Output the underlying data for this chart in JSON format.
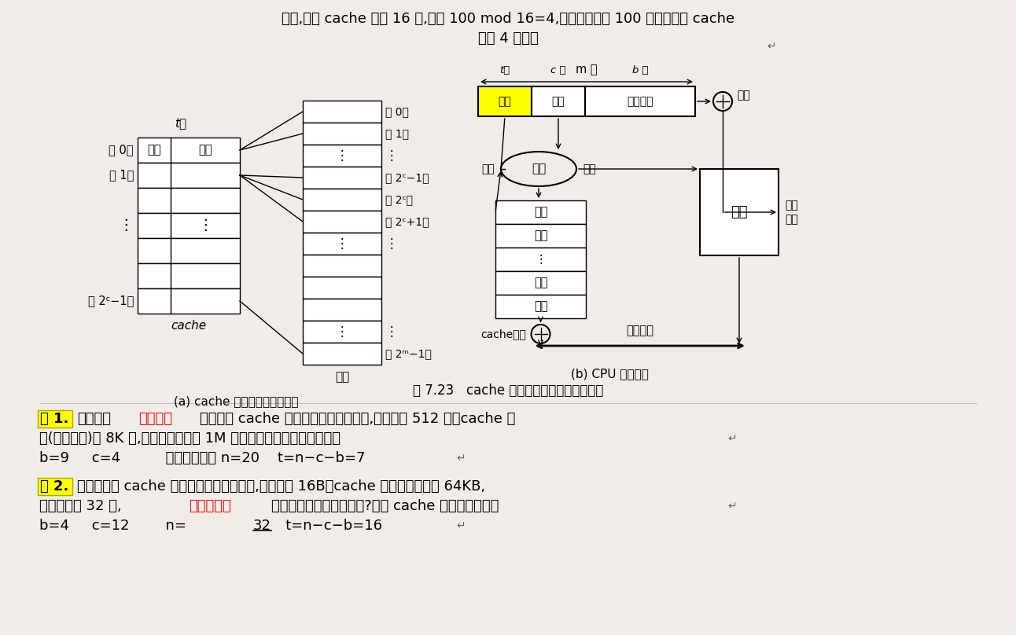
{
  "bg_color": "#f0ede8",
  "top_line1": "例如,假定 cache 共有 16 行,根据 100 mod 16=4,可知：主存第 100 块应映射到 cache",
  "top_line2": "的第 4 行中。",
  "return_arrow": "↵",
  "fig_caption": "图 7.23   cache 和主存之间的直接映射方式",
  "example1_prefix": "例 1.",
  "example1_red": "按字编址",
  "example1_ans": "b=9     c=4          主存地址位数 n=20    t=n−c−b=7",
  "example2_prefix": "例 2.",
  "example2_red": "按字节编址",
  "example2_ans_pre": "b=4     c=12        n=",
  "example2_ans_num": "32",
  "example2_ans_post": "   t=n−c−b=16"
}
